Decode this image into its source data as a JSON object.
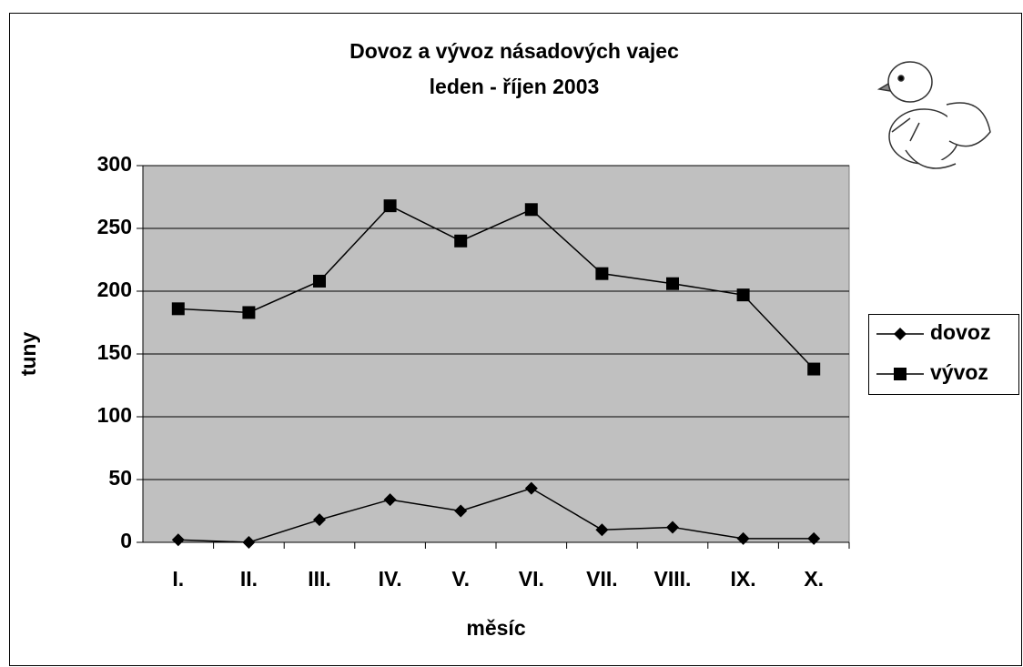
{
  "chart_data": {
    "type": "line",
    "title": "Dovoz a vývoz násadových vajec",
    "subtitle": "leden - říjen 2003",
    "x_label": "měsíc",
    "y_label": "tuny",
    "categories": [
      "I.",
      "II.",
      "III.",
      "IV.",
      "V.",
      "VI.",
      "VII.",
      "VIII.",
      "IX.",
      "X."
    ],
    "series": [
      {
        "name": "dovoz",
        "color": "#000000",
        "marker": "diamond",
        "values": [
          2,
          0,
          18,
          34,
          25,
          43,
          10,
          12,
          3,
          3
        ]
      },
      {
        "name": "vývoz",
        "color": "#000000",
        "marker": "square",
        "values": [
          186,
          183,
          208,
          268,
          240,
          265,
          214,
          206,
          197,
          138
        ]
      }
    ],
    "ylim": [
      0,
      300
    ],
    "yticks": [
      0,
      50,
      100,
      150,
      200,
      250,
      300
    ],
    "grid": true,
    "plot_background": "#c0c0c0",
    "legend": "right"
  }
}
